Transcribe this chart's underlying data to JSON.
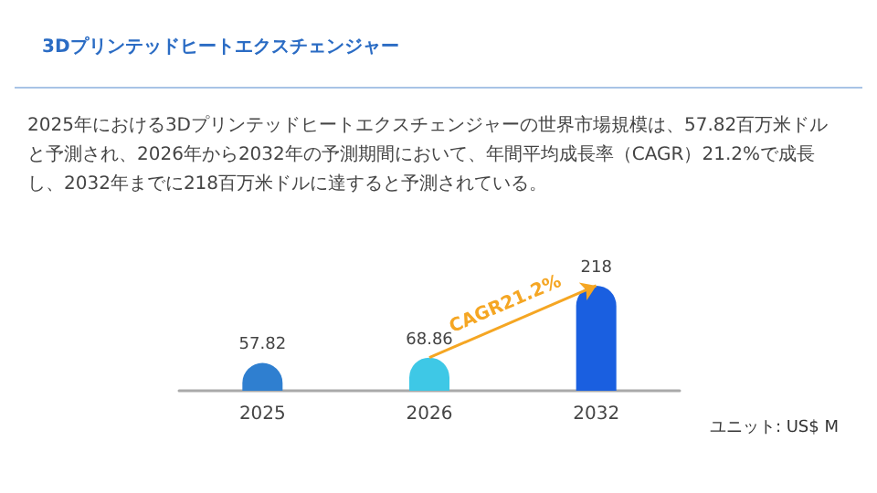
{
  "chart_data": {
    "type": "bar",
    "title": "3Dプリンテッドヒートエクスチェンジャー",
    "subtitle": "2025年における3Dプリンテッドヒートエクスチェンジャーの世界市場規模は、57.82百万米ドルと予測され、2026年から2032年の予測期間において、年間平均成長率（CAGR）21.2%で成長し、2032年までに218百万米ドルに達すると予測されている。",
    "categories": [
      "2025",
      "2026",
      "2032"
    ],
    "values": [
      57.82,
      68.86,
      218
    ],
    "colors": [
      "#2f7fd0",
      "#3ec8e6",
      "#1a5fe0"
    ],
    "data_labels": true,
    "annotations": [
      {
        "text": "CAGR21.2%",
        "x": "2026",
        "y": 68.86
      },
      "ユニット: US$ M"
    ]
  }
}
